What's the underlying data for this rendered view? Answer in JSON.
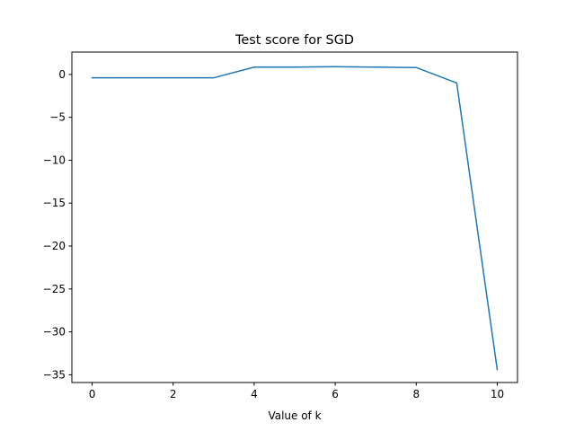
{
  "chart_data": {
    "type": "line",
    "title": "Test score for SGD",
    "xlabel": "Value of k",
    "ylabel": "",
    "x": [
      0,
      1,
      2,
      3,
      4,
      5,
      6,
      7,
      8,
      9,
      10
    ],
    "series": [
      {
        "values": [
          -0.4,
          -0.4,
          -0.4,
          -0.4,
          0.85,
          0.85,
          0.9,
          0.85,
          0.8,
          -1.0,
          -34.4
        ],
        "color": "#1f77b4"
      }
    ],
    "xlim": [
      -0.5,
      10.5
    ],
    "ylim": [
      -35.9,
      2.6
    ],
    "xticks": [
      0,
      2,
      4,
      6,
      8,
      10
    ],
    "xtick_labels": [
      "0",
      "2",
      "4",
      "6",
      "8",
      "10"
    ],
    "yticks": [
      0,
      -5,
      -10,
      -15,
      -20,
      -25,
      -30,
      -35
    ],
    "ytick_labels": [
      "0",
      "−5",
      "−10",
      "−15",
      "−20",
      "−25",
      "−30",
      "−35"
    ],
    "grid": false,
    "legend": "none"
  }
}
